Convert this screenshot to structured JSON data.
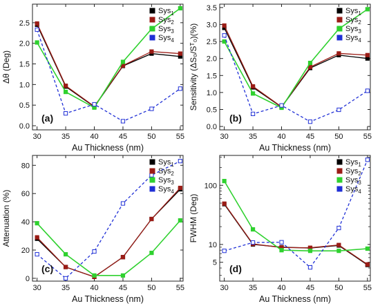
{
  "figure": {
    "panels": [
      {
        "id": "a",
        "tag": "(a)",
        "ylabel": "Δθ (Deg)",
        "xlabel": "Au Thickness (nm)"
      },
      {
        "id": "b",
        "tag": "(b)",
        "ylabel": "Sensitivity (ΔS₀/Sᵀ₀)(%)",
        "xlabel": "Au Thickness (nm)"
      },
      {
        "id": "c",
        "tag": "(c)",
        "ylabel": "Attenuation (%)",
        "xlabel": "Au Thickness (nm)"
      },
      {
        "id": "d",
        "tag": "(d)",
        "ylabel": "FWHM (Deg)",
        "xlabel": "Au Thickness (nm)"
      }
    ],
    "legend": [
      {
        "name": "Sys",
        "sub": "1",
        "color": "#000000"
      },
      {
        "name": "Sys",
        "sub": "2",
        "color": "#9b1c16"
      },
      {
        "name": "Sys",
        "sub": "3",
        "color": "#2fd12f"
      },
      {
        "name": "Sys",
        "sub": "4",
        "color": "#1f2fd6"
      }
    ]
  },
  "chart_data": [
    {
      "type": "line",
      "title": "",
      "tag": "(a)",
      "xlabel": "Au Thickness (nm)",
      "ylabel": "Δθ (Deg)",
      "x": [
        30,
        35,
        40,
        45,
        50,
        55
      ],
      "xticks": [
        30,
        35,
        40,
        45,
        50,
        55
      ],
      "yticks": [
        0.0,
        0.5,
        1.0,
        1.5,
        2.0,
        2.5
      ],
      "ytick_labels": [
        "0.0",
        "0.5",
        "1.0",
        "1.5",
        "2.0",
        "2.5"
      ],
      "ylim": [
        -0.1,
        2.95
      ],
      "yscale": "linear",
      "legend_position": "top-right",
      "series": [
        {
          "name": "Sys1",
          "color": "#000000",
          "style": "solid",
          "marker": "square",
          "values": [
            2.45,
            0.95,
            0.46,
            1.45,
            1.75,
            1.68
          ]
        },
        {
          "name": "Sys2",
          "color": "#9b1c16",
          "style": "solid",
          "marker": "square",
          "values": [
            2.48,
            0.97,
            0.47,
            1.46,
            1.8,
            1.75
          ]
        },
        {
          "name": "Sys3",
          "color": "#2fd12f",
          "style": "solid",
          "marker": "square",
          "values": [
            2.02,
            0.82,
            0.44,
            1.55,
            2.35,
            2.85
          ]
        },
        {
          "name": "Sys4",
          "color": "#1f2fd6",
          "style": "dashed",
          "marker": "open-square",
          "values": [
            2.33,
            0.3,
            0.52,
            0.11,
            0.41,
            0.9
          ]
        }
      ]
    },
    {
      "type": "line",
      "title": "",
      "tag": "(b)",
      "xlabel": "Au Thickness (nm)",
      "ylabel": "Sensitivity (ΔS₀/Sᵀ₀)(%)",
      "x": [
        30,
        35,
        40,
        45,
        50,
        55
      ],
      "xticks": [
        30,
        35,
        40,
        45,
        50,
        55
      ],
      "yticks": [
        0.0,
        0.5,
        1.0,
        1.5,
        2.0,
        2.5,
        3.0,
        3.5
      ],
      "ytick_labels": [
        "0.0",
        "0.5",
        "1.0",
        "1.5",
        "2.0",
        "2.5",
        "3.0",
        "3.5"
      ],
      "ylim": [
        -0.1,
        3.6
      ],
      "yscale": "linear",
      "legend_position": "top-right",
      "series": [
        {
          "name": "Sys1",
          "color": "#000000",
          "style": "solid",
          "marker": "square",
          "values": [
            2.9,
            1.15,
            0.57,
            1.72,
            2.1,
            2.0
          ]
        },
        {
          "name": "Sys2",
          "color": "#9b1c16",
          "style": "solid",
          "marker": "square",
          "values": [
            2.97,
            1.18,
            0.58,
            1.75,
            2.15,
            2.1
          ]
        },
        {
          "name": "Sys3",
          "color": "#2fd12f",
          "style": "solid",
          "marker": "square",
          "values": [
            2.5,
            0.97,
            0.55,
            1.87,
            2.87,
            3.45
          ]
        },
        {
          "name": "Sys4",
          "color": "#1f2fd6",
          "style": "dashed",
          "marker": "open-square",
          "values": [
            2.68,
            0.37,
            0.62,
            0.14,
            0.49,
            1.05
          ]
        }
      ]
    },
    {
      "type": "line",
      "title": "",
      "tag": "(c)",
      "xlabel": "Au Thickness (nm)",
      "ylabel": "Attenuation (%)",
      "x": [
        30,
        35,
        40,
        45,
        50,
        55
      ],
      "xticks": [
        30,
        35,
        40,
        45,
        50,
        55
      ],
      "yticks": [
        0,
        20,
        40,
        60,
        80
      ],
      "ytick_labels": [
        "0",
        "20",
        "40",
        "60",
        "80"
      ],
      "ylim": [
        -2,
        87
      ],
      "yscale": "linear",
      "legend_position": "top-left",
      "series": [
        {
          "name": "Sys1",
          "color": "#000000",
          "style": "solid",
          "marker": "square",
          "values": [
            28,
            8,
            1,
            15,
            42,
            63
          ]
        },
        {
          "name": "Sys2",
          "color": "#9b1c16",
          "style": "solid",
          "marker": "square",
          "values": [
            29,
            8,
            1,
            15,
            42,
            64
          ]
        },
        {
          "name": "Sys3",
          "color": "#2fd12f",
          "style": "solid",
          "marker": "square",
          "values": [
            39,
            17,
            2,
            2,
            18,
            41
          ]
        },
        {
          "name": "Sys4",
          "color": "#1f2fd6",
          "style": "dashed",
          "marker": "open-square",
          "values": [
            17,
            0,
            19,
            53,
            73,
            83
          ]
        }
      ]
    },
    {
      "type": "line",
      "title": "",
      "tag": "(d)",
      "xlabel": "Au Thickness (nm)",
      "ylabel": "FWHM (Deg)",
      "x": [
        30,
        35,
        40,
        45,
        50,
        55
      ],
      "xticks": [
        30,
        35,
        40,
        45,
        50,
        55
      ],
      "yticks": [
        5,
        10,
        100
      ],
      "ytick_labels": [
        "5",
        "10",
        "100"
      ],
      "ylim": [
        2.4,
        320
      ],
      "yscale": "log",
      "legend_position": "top-left",
      "series": [
        {
          "name": "Sys1",
          "color": "#000000",
          "style": "solid",
          "marker": "square",
          "values": [
            48,
            10,
            9,
            8.7,
            9.6,
            4.5
          ]
        },
        {
          "name": "Sys2",
          "color": "#9b1c16",
          "style": "solid",
          "marker": "square",
          "values": [
            49,
            10.2,
            8.9,
            8.8,
            9.8,
            4.6
          ]
        },
        {
          "name": "Sys3",
          "color": "#2fd12f",
          "style": "solid",
          "marker": "square",
          "values": [
            118,
            18,
            8,
            7.8,
            7.8,
            8.5
          ]
        },
        {
          "name": "Sys4",
          "color": "#1f2fd6",
          "style": "dashed",
          "marker": "open-square",
          "values": [
            7.8,
            10.8,
            10.9,
            4.1,
            19,
            270
          ]
        }
      ]
    }
  ]
}
